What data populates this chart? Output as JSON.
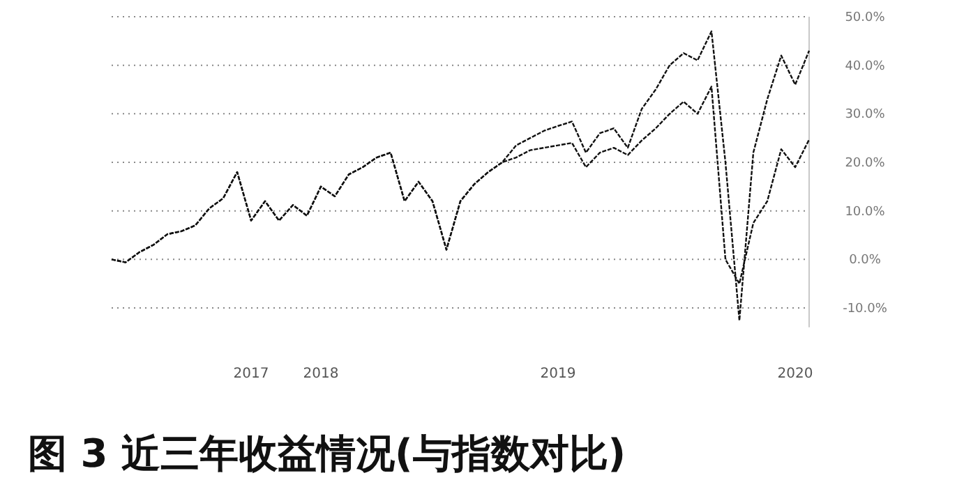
{
  "chart_data": {
    "type": "line",
    "title": "图 3 近三年收益情况(与指数对比)",
    "categories": [
      null,
      null,
      null,
      null,
      null,
      null,
      null,
      null,
      null,
      null,
      "2017",
      null,
      null,
      null,
      null,
      "2018",
      null,
      null,
      null,
      null,
      null,
      null,
      null,
      null,
      null,
      null,
      null,
      null,
      null,
      null,
      null,
      null,
      "2019",
      null,
      null,
      null,
      null,
      null,
      null,
      null,
      null,
      null,
      null,
      null,
      null,
      null,
      null,
      null,
      null,
      "2020",
      null
    ],
    "ylim": [
      -14,
      50
    ],
    "yticks": [
      {
        "value": 50,
        "label": "50.0%"
      },
      {
        "value": 40,
        "label": "40.0%"
      },
      {
        "value": 30,
        "label": "30.0%"
      },
      {
        "value": 20,
        "label": "20.0%"
      },
      {
        "value": 10,
        "label": "10.0%"
      },
      {
        "value": 0,
        "label": "0.0%"
      },
      {
        "value": -10,
        "label": "-10.0%"
      }
    ],
    "grid": "y",
    "line_style": "dashed",
    "series": [
      {
        "color": "#111111",
        "values": [
          0,
          -0.6,
          1.5,
          3,
          5.2,
          5.8,
          7,
          10.5,
          12.6,
          18,
          8,
          12,
          8,
          11.2,
          9,
          15,
          13,
          17.5,
          19,
          21,
          22,
          12,
          16,
          12,
          2,
          12,
          15.5,
          18,
          20,
          23.5,
          25,
          26.5,
          27.5,
          28.4,
          22,
          26,
          27,
          23,
          31,
          35,
          40,
          42.5,
          41,
          47,
          20,
          -12.6,
          22,
          33,
          42,
          36,
          43
        ]
      },
      {
        "color": "#111111",
        "values": [
          0,
          -0.6,
          1.5,
          3,
          5.2,
          5.8,
          7,
          10.5,
          12.6,
          18,
          8,
          12,
          8,
          11.2,
          9,
          15,
          13,
          17.5,
          19,
          21,
          22,
          12,
          16,
          12,
          2,
          12,
          15.5,
          18,
          20,
          21,
          22.5,
          23,
          23.5,
          24,
          19,
          22,
          23,
          21.5,
          24.5,
          27,
          30,
          32.5,
          30,
          35.6,
          0,
          -5,
          7.5,
          12,
          22.7,
          19,
          24.7
        ]
      }
    ]
  }
}
